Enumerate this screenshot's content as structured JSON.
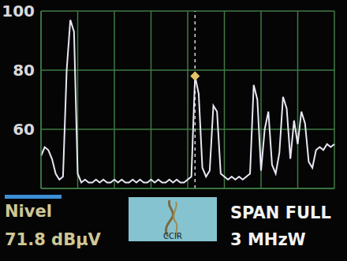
{
  "chart_data": {
    "type": "line",
    "categories": [
      null,
      null,
      null,
      null,
      null,
      null,
      null,
      null,
      null,
      null,
      null,
      null,
      null,
      null,
      null,
      null,
      null,
      null,
      null,
      null,
      null,
      null,
      null,
      null,
      null,
      null,
      null,
      null,
      null,
      null,
      null,
      null,
      null,
      null,
      null,
      null,
      null,
      null,
      null,
      null,
      null,
      null,
      null,
      null,
      null,
      null,
      null,
      null,
      null,
      null,
      null,
      null,
      null,
      null,
      null,
      null,
      null,
      null,
      null,
      null,
      null,
      null,
      null,
      null,
      null,
      null,
      null,
      null,
      null,
      null,
      null,
      null,
      null,
      null,
      null,
      null,
      null,
      null,
      null,
      null,
      null
    ],
    "values": [
      51,
      54,
      53,
      50,
      45,
      43,
      44,
      80,
      97,
      93,
      45,
      42,
      43,
      42,
      42,
      43,
      42,
      43,
      42,
      42,
      43,
      42,
      43,
      42,
      42,
      43,
      42,
      43,
      42,
      42,
      43,
      42,
      43,
      42,
      42,
      43,
      42,
      43,
      42,
      42,
      43,
      44,
      78,
      72,
      47,
      44,
      46,
      68,
      66,
      45,
      44,
      43,
      44,
      43,
      44,
      43,
      44,
      45,
      75,
      70,
      46,
      60,
      66,
      48,
      45,
      52,
      71,
      67,
      50,
      63,
      55,
      66,
      62,
      49,
      47,
      53,
      54,
      53,
      55,
      54,
      55
    ],
    "color": "#e8e8f4",
    "ylim": [
      40,
      100
    ],
    "yticks": [
      60,
      80,
      100
    ],
    "grid": true,
    "tick_labels": "y",
    "cursor": 42,
    "annotations": {
      "level_label": "Nivel",
      "level": "71.8 dBµV",
      "thumbnail_label": "CCIR",
      "span": [
        "SPAN FULL",
        "3 MHzW"
      ]
    }
  }
}
